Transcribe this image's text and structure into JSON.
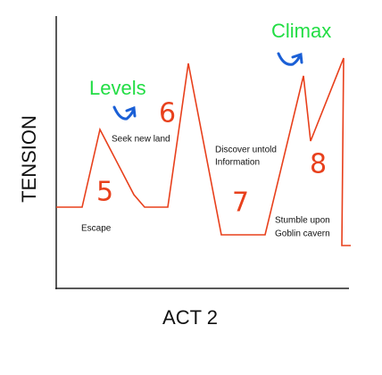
{
  "axes": {
    "y_label": "TENSION",
    "x_label": "ACT 2"
  },
  "annotations": {
    "levels": "Levels",
    "climax": "Climax"
  },
  "events": [
    {
      "number": 5,
      "lines": [
        "Escape"
      ]
    },
    {
      "number": 6,
      "lines": [
        "Seek new land"
      ]
    },
    {
      "number": 7,
      "lines": [
        "Discover untold",
        "Information"
      ]
    },
    {
      "number": 8,
      "lines": [
        "Stumble upon",
        "Goblin cavern"
      ]
    }
  ]
}
